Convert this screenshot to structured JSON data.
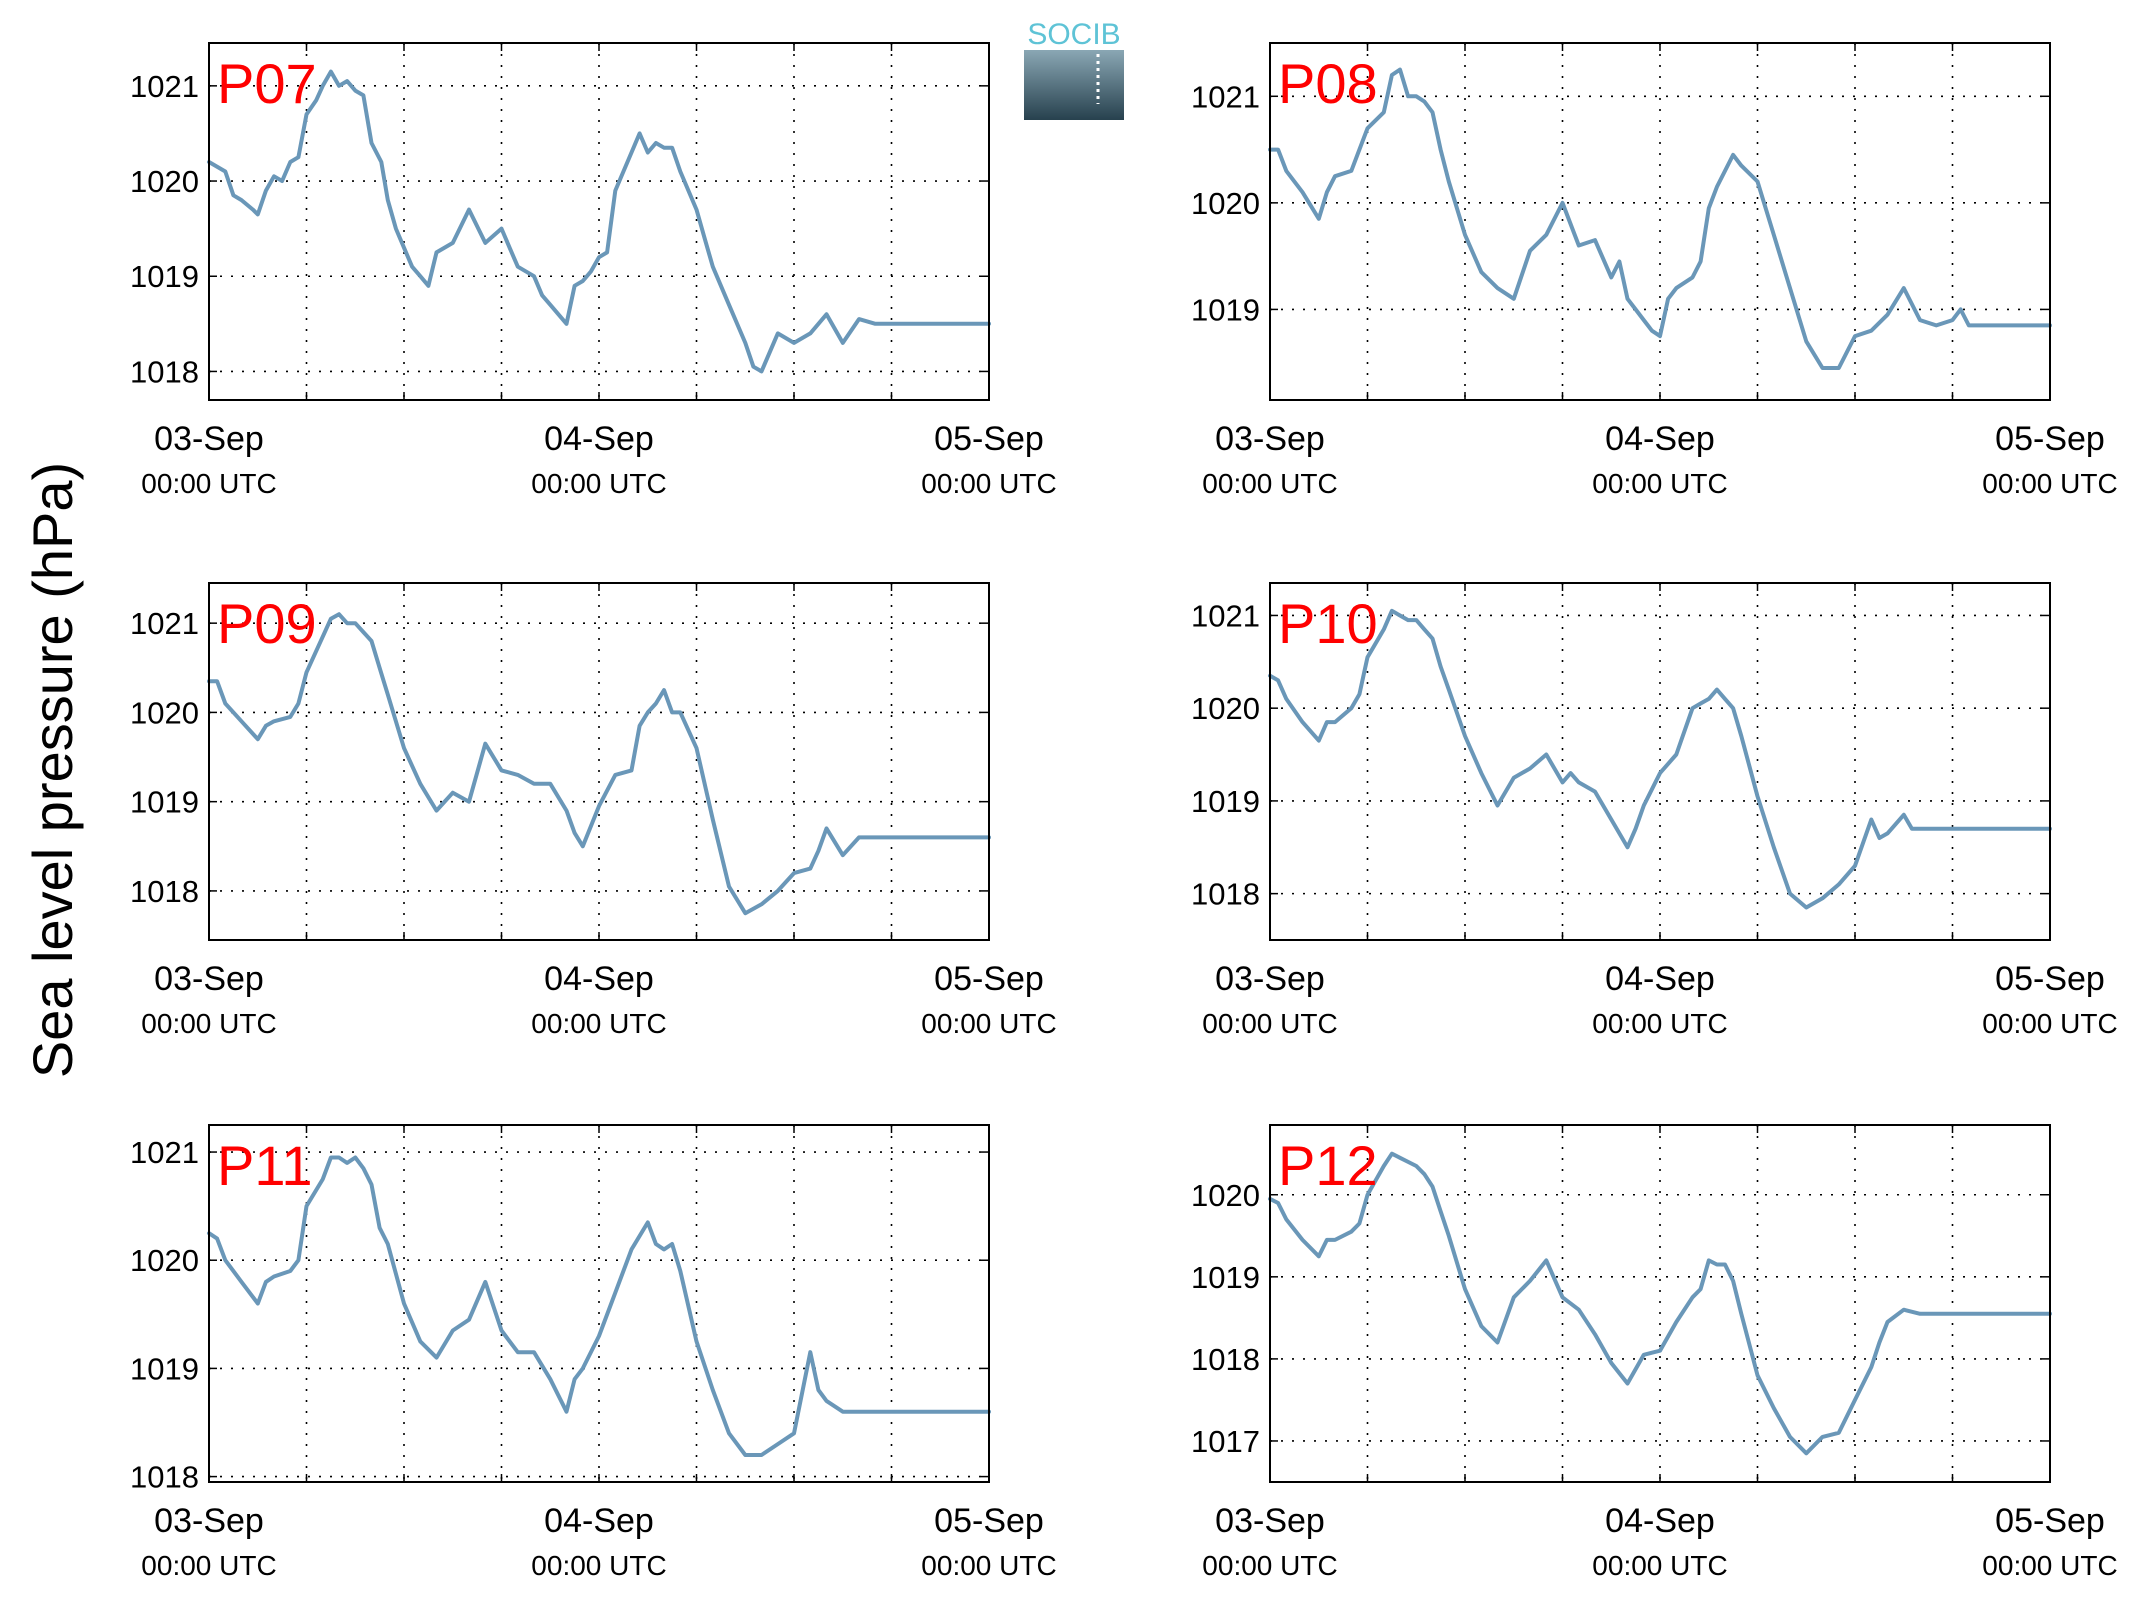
{
  "figure": {
    "ylabel": "Sea level pressure (hPa)",
    "logo": {
      "text": "SOCIB",
      "color_top": "#5ec3d6",
      "color_box_top": "#8aa7b4",
      "color_box_bottom": "#27414e"
    }
  },
  "style": {
    "line_color": "#6a97b8",
    "title_color": "#ff0000",
    "axis_color": "#000000"
  },
  "x_ticks": [
    {
      "value": 0,
      "date": "03-Sep",
      "time": "00:00 UTC"
    },
    {
      "value": 24,
      "date": "04-Sep",
      "time": "00:00 UTC"
    },
    {
      "value": 48,
      "date": "05-Sep",
      "time": "00:00 UTC"
    }
  ],
  "chart_data": [
    {
      "type": "line",
      "title": "P07",
      "xlim": [
        0,
        48
      ],
      "ylim": [
        1017.7,
        1021.45
      ],
      "yticks": [
        1018,
        1019,
        1020,
        1021
      ],
      "grid": true,
      "x_unit": "hours since 03-Sep 00:00 UTC",
      "series": [
        {
          "x": [
            0,
            1,
            1.5,
            2,
            2.7,
            3,
            3.5,
            4,
            4.5,
            5,
            5.5,
            6,
            6.6,
            7,
            7.5,
            8,
            8.5,
            9,
            9.5,
            10,
            10.6,
            11,
            11.5,
            12,
            12.5,
            13,
            13.5,
            14,
            15,
            16,
            17,
            18,
            18.5,
            19,
            20,
            20.5,
            21,
            21.5,
            22,
            22.5,
            23,
            23.5,
            24,
            24.5,
            25,
            26,
            26.5,
            27,
            27.5,
            28,
            28.5,
            29,
            30,
            30.5,
            31,
            32,
            33,
            33.5,
            34,
            35,
            36,
            37,
            38,
            39,
            40,
            41,
            42,
            42.5,
            43,
            44,
            45,
            45.5,
            46,
            46.5,
            47,
            48
          ],
          "y": [
            1020.2,
            1020.1,
            1019.85,
            1019.8,
            1019.7,
            1019.65,
            1019.9,
            1020.05,
            1020.0,
            1020.2,
            1020.25,
            1020.7,
            1020.85,
            1021.0,
            1021.15,
            1021.0,
            1021.05,
            1020.95,
            1020.9,
            1020.4,
            1020.2,
            1019.8,
            1019.5,
            1019.3,
            1019.1,
            1019.0,
            1018.9,
            1019.25,
            1019.35,
            1019.7,
            1019.35,
            1019.5,
            1019.3,
            1019.1,
            1019.0,
            1018.8,
            1018.7,
            1018.6,
            1018.5,
            1018.9,
            1018.95,
            1019.05,
            1019.2,
            1019.25,
            1019.9,
            1020.3,
            1020.5,
            1020.3,
            1020.4,
            1020.35,
            1020.35,
            1020.1,
            1019.7,
            1019.4,
            1019.1,
            1018.7,
            1018.3,
            1018.05,
            1018.0,
            1018.4,
            1018.3,
            1018.4,
            1018.6,
            1018.3,
            1018.55,
            1018.5,
            1018.5,
            1018.5,
            1018.5,
            1018.5,
            1018.5,
            1018.5,
            1018.5,
            1018.5,
            1018.5,
            1018.5
          ]
        }
      ]
    },
    {
      "type": "line",
      "title": "P08",
      "xlim": [
        0,
        48
      ],
      "ylim": [
        1018.15,
        1021.5
      ],
      "yticks": [
        1019,
        1020,
        1021
      ],
      "grid": true,
      "x_unit": "hours since 03-Sep 00:00 UTC",
      "series": [
        {
          "x": [
            0,
            0.5,
            1,
            2,
            3,
            3.5,
            4,
            5,
            5.5,
            6,
            7,
            7.5,
            8,
            8.5,
            9,
            9.5,
            10,
            10.5,
            11,
            12,
            13,
            14,
            15,
            16,
            17,
            18,
            19,
            20,
            21,
            21.5,
            22,
            22.5,
            23,
            23.5,
            24,
            24.5,
            25,
            26,
            26.5,
            27,
            27.5,
            28,
            28.5,
            29,
            30,
            31,
            32,
            33,
            34,
            35,
            36,
            37,
            38,
            39,
            40,
            41,
            42,
            42.5,
            43,
            44,
            45,
            46,
            46.5,
            47,
            48
          ],
          "y": [
            1020.5,
            1020.5,
            1020.3,
            1020.1,
            1019.85,
            1020.1,
            1020.25,
            1020.3,
            1020.5,
            1020.7,
            1020.85,
            1021.2,
            1021.25,
            1021.0,
            1021.0,
            1020.95,
            1020.85,
            1020.5,
            1020.2,
            1019.7,
            1019.35,
            1019.2,
            1019.1,
            1019.55,
            1019.7,
            1020.0,
            1019.6,
            1019.65,
            1019.3,
            1019.45,
            1019.1,
            1019.0,
            1018.9,
            1018.8,
            1018.75,
            1019.1,
            1019.2,
            1019.3,
            1019.45,
            1019.95,
            1020.15,
            1020.3,
            1020.45,
            1020.35,
            1020.2,
            1019.7,
            1019.2,
            1018.7,
            1018.45,
            1018.45,
            1018.75,
            1018.8,
            1018.95,
            1019.2,
            1018.9,
            1018.85,
            1018.9,
            1019.0,
            1018.85,
            1018.85,
            1018.85,
            1018.85,
            1018.85,
            1018.85,
            1018.85
          ]
        }
      ]
    },
    {
      "type": "line",
      "title": "P09",
      "xlim": [
        0,
        48
      ],
      "ylim": [
        1017.45,
        1021.45
      ],
      "yticks": [
        1018,
        1019,
        1020,
        1021
      ],
      "grid": true,
      "x_unit": "hours since 03-Sep 00:00 UTC",
      "series": [
        {
          "x": [
            0,
            0.5,
            1,
            2,
            3,
            3.5,
            4,
            5,
            5.5,
            6,
            7,
            7.5,
            8,
            8.5,
            9,
            9.5,
            10,
            10.5,
            11,
            12,
            13,
            14,
            15,
            16,
            17,
            18,
            19,
            20,
            21,
            22,
            22.5,
            23,
            24,
            25,
            26,
            26.5,
            27,
            27.5,
            28,
            28.5,
            29,
            30,
            31,
            32,
            33,
            34,
            35,
            36,
            37,
            37.5,
            38,
            39,
            40,
            41,
            41.5,
            42,
            43,
            43.5,
            44,
            45,
            46,
            47,
            48
          ],
          "y": [
            1020.35,
            1020.35,
            1020.1,
            1019.9,
            1019.7,
            1019.85,
            1019.9,
            1019.95,
            1020.1,
            1020.45,
            1020.85,
            1021.05,
            1021.1,
            1021.0,
            1021.0,
            1020.9,
            1020.8,
            1020.5,
            1020.2,
            1019.6,
            1019.2,
            1018.9,
            1019.1,
            1019.0,
            1019.65,
            1019.35,
            1019.3,
            1019.2,
            1019.2,
            1018.9,
            1018.65,
            1018.5,
            1018.95,
            1019.3,
            1019.35,
            1019.85,
            1020.0,
            1020.1,
            1020.25,
            1020.0,
            1020.0,
            1019.6,
            1018.8,
            1018.05,
            1017.75,
            1017.85,
            1018.0,
            1018.2,
            1018.25,
            1018.45,
            1018.7,
            1018.4,
            1018.6,
            1018.6,
            1018.6,
            1018.6,
            1018.6,
            1018.6,
            1018.6,
            1018.6,
            1018.6,
            1018.6,
            1018.6
          ]
        }
      ]
    },
    {
      "type": "line",
      "title": "P10",
      "xlim": [
        0,
        48
      ],
      "ylim": [
        1017.5,
        1021.35
      ],
      "yticks": [
        1018,
        1019,
        1020,
        1021
      ],
      "grid": true,
      "x_unit": "hours since 03-Sep 00:00 UTC",
      "series": [
        {
          "x": [
            0,
            0.5,
            1,
            2,
            3,
            3.5,
            4,
            5,
            5.5,
            6,
            7,
            7.5,
            8,
            8.5,
            9,
            9.5,
            10,
            10.5,
            11,
            12,
            13,
            14,
            15,
            16,
            17,
            18,
            18.5,
            19,
            20,
            21,
            22,
            22.5,
            23,
            24,
            25,
            26,
            26.5,
            27,
            27.5,
            28,
            28.5,
            29,
            30,
            31,
            32,
            33,
            34,
            35,
            36,
            37,
            37.5,
            38,
            39,
            39.5,
            40,
            41,
            42,
            43,
            44,
            45,
            46,
            47,
            48
          ],
          "y": [
            1020.35,
            1020.3,
            1020.1,
            1019.85,
            1019.65,
            1019.85,
            1019.85,
            1020.0,
            1020.15,
            1020.55,
            1020.85,
            1021.05,
            1021.0,
            1020.95,
            1020.95,
            1020.85,
            1020.75,
            1020.45,
            1020.2,
            1019.7,
            1019.3,
            1018.95,
            1019.25,
            1019.35,
            1019.5,
            1019.2,
            1019.3,
            1019.2,
            1019.1,
            1018.8,
            1018.5,
            1018.7,
            1018.95,
            1019.3,
            1019.5,
            1020.0,
            1020.05,
            1020.1,
            1020.2,
            1020.1,
            1020.0,
            1019.7,
            1019.05,
            1018.5,
            1018.0,
            1017.85,
            1017.95,
            1018.1,
            1018.3,
            1018.8,
            1018.6,
            1018.65,
            1018.85,
            1018.7,
            1018.7,
            1018.7,
            1018.7,
            1018.7,
            1018.7,
            1018.7,
            1018.7,
            1018.7,
            1018.7
          ]
        }
      ]
    },
    {
      "type": "line",
      "title": "P11",
      "xlim": [
        0,
        48
      ],
      "ylim": [
        1017.95,
        1021.25
      ],
      "yticks": [
        1018,
        1019,
        1020,
        1021
      ],
      "grid": true,
      "x_unit": "hours since 03-Sep 00:00 UTC",
      "series": [
        {
          "x": [
            0,
            0.5,
            1,
            2,
            3,
            3.5,
            4,
            5,
            5.5,
            6,
            7,
            7.5,
            8,
            8.5,
            9,
            9.5,
            10,
            10.5,
            11,
            12,
            13,
            14,
            15,
            16,
            17,
            18,
            19,
            20,
            21,
            22,
            22.5,
            23,
            24,
            25,
            26,
            27,
            27.5,
            28,
            28.5,
            29,
            30,
            31,
            32,
            33,
            34,
            35,
            36,
            37,
            37.5,
            38,
            39,
            40,
            41,
            42,
            43,
            44,
            45,
            46,
            47,
            48
          ],
          "y": [
            1020.25,
            1020.2,
            1020.0,
            1019.8,
            1019.6,
            1019.8,
            1019.85,
            1019.9,
            1020.0,
            1020.5,
            1020.75,
            1020.95,
            1020.95,
            1020.9,
            1020.95,
            1020.85,
            1020.7,
            1020.3,
            1020.15,
            1019.6,
            1019.25,
            1019.1,
            1019.35,
            1019.45,
            1019.8,
            1019.35,
            1019.15,
            1019.15,
            1018.9,
            1018.6,
            1018.9,
            1019.0,
            1019.3,
            1019.7,
            1020.1,
            1020.35,
            1020.15,
            1020.1,
            1020.15,
            1019.9,
            1019.25,
            1018.8,
            1018.4,
            1018.2,
            1018.2,
            1018.3,
            1018.4,
            1019.15,
            1018.8,
            1018.7,
            1018.6,
            1018.6,
            1018.6,
            1018.6,
            1018.6,
            1018.6,
            1018.6,
            1018.6,
            1018.6,
            1018.6
          ]
        }
      ]
    },
    {
      "type": "line",
      "title": "P12",
      "xlim": [
        0,
        48
      ],
      "ylim": [
        1016.5,
        1020.85
      ],
      "yticks": [
        1017,
        1018,
        1019,
        1020
      ],
      "grid": true,
      "x_unit": "hours since 03-Sep 00:00 UTC",
      "series": [
        {
          "x": [
            0,
            0.5,
            1,
            2,
            3,
            3.5,
            4,
            5,
            5.5,
            6,
            7,
            7.5,
            8,
            8.5,
            9,
            9.5,
            10,
            10.5,
            11,
            12,
            13,
            14,
            15,
            16,
            17,
            18,
            19,
            20,
            21,
            22,
            23,
            24,
            25,
            26,
            26.5,
            27,
            27.5,
            28,
            28.5,
            29,
            30,
            31,
            32,
            33,
            34,
            35,
            36,
            37,
            37.5,
            38,
            39,
            40,
            41,
            42,
            43,
            44,
            45,
            46,
            47,
            48
          ],
          "y": [
            1019.95,
            1019.9,
            1019.7,
            1019.45,
            1019.25,
            1019.45,
            1019.45,
            1019.55,
            1019.65,
            1020.0,
            1020.35,
            1020.5,
            1020.45,
            1020.4,
            1020.35,
            1020.25,
            1020.1,
            1019.8,
            1019.5,
            1018.85,
            1018.4,
            1018.2,
            1018.75,
            1018.95,
            1019.2,
            1018.75,
            1018.6,
            1018.3,
            1017.95,
            1017.7,
            1018.05,
            1018.1,
            1018.45,
            1018.75,
            1018.85,
            1019.2,
            1019.15,
            1019.15,
            1018.95,
            1018.55,
            1017.8,
            1017.4,
            1017.05,
            1016.85,
            1017.05,
            1017.1,
            1017.5,
            1017.9,
            1018.2,
            1018.45,
            1018.6,
            1018.55,
            1018.55,
            1018.55,
            1018.55,
            1018.55,
            1018.55,
            1018.55,
            1018.55,
            1018.55
          ]
        }
      ]
    }
  ]
}
